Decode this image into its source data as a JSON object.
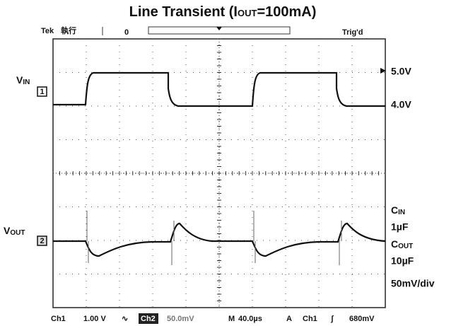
{
  "title": {
    "prefix": "Line Transient (I",
    "sub": "OUT",
    "suffix": "=100mA)"
  },
  "top_bar": {
    "brand": "Tek",
    "run_state": "執行",
    "trigger_status": "Trig'd"
  },
  "left_labels": {
    "vin": {
      "main": "V",
      "sub": "IN"
    },
    "vin_channel": "1",
    "vout": {
      "main": "V",
      "sub": "OUT"
    },
    "vout_channel": "2"
  },
  "right_labels": {
    "vin_high": "5.0V",
    "vin_low": "4.0V",
    "cin": {
      "main": "C",
      "sub": "IN"
    },
    "cin_value": "1µF",
    "cout": {
      "main": "C",
      "sub": "OUT"
    },
    "cout_value": "10µF",
    "vout_scale": "50mV/div"
  },
  "status_bar": {
    "ch1": "Ch1",
    "ch1_scale": "1.00 V",
    "ch1_coupling": "∿",
    "ch2": "Ch2",
    "ch2_scale": "50.0mV",
    "time_label": "M",
    "time_scale": "40.0µs",
    "trigger_label": "A",
    "trigger_source": "Ch1",
    "trigger_slope": "ʃ",
    "trigger_level": "680mV"
  }
}
